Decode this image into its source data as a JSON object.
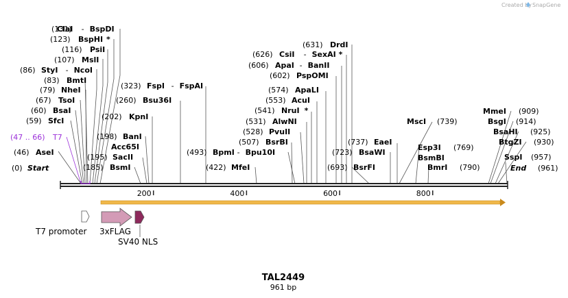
{
  "credit": {
    "text": "Created by",
    "brand": "SnapGene"
  },
  "sequence": {
    "name": "TAL2449",
    "length_label": "961 bp",
    "length_bp": 961
  },
  "scale": {
    "ticks": [
      {
        "label": "200",
        "bp": 200
      },
      {
        "label": "400",
        "bp": 400
      },
      {
        "label": "600",
        "bp": 600
      },
      {
        "label": "800",
        "bp": 800
      }
    ]
  },
  "orf": {
    "start_bp": 86,
    "end_bp": 961,
    "color": "#f0b84a"
  },
  "features": [
    {
      "label": "T7 promoter",
      "type": "promoter",
      "color": "#ffffff"
    },
    {
      "label": "3xFLAG",
      "type": "cds",
      "color": "#d39bb6"
    },
    {
      "label": "SV40 NLS",
      "type": "cds",
      "color": "#8e2a5c"
    }
  ],
  "left_labels": [
    {
      "pos": "(131)",
      "name": "ClaI",
      "suffix": "-",
      "name2": "BspDI",
      "star": ""
    },
    {
      "pos": "(123)",
      "name": "BspHI",
      "suffix": "",
      "name2": "",
      "star": "*"
    },
    {
      "pos": "(116)",
      "name": "PsiI",
      "suffix": "",
      "name2": "",
      "star": ""
    },
    {
      "pos": "(107)",
      "name": "MslI",
      "suffix": "",
      "name2": "",
      "star": ""
    },
    {
      "pos": "(86)",
      "name": "StyI",
      "suffix": "-",
      "name2": "NcoI",
      "star": ""
    },
    {
      "pos": "(83)",
      "name": "BmtI",
      "suffix": "",
      "name2": "",
      "star": ""
    },
    {
      "pos": "(79)",
      "name": "NheI",
      "suffix": "",
      "name2": "",
      "star": ""
    },
    {
      "pos": "(67)",
      "name": "TsoI",
      "suffix": "",
      "name2": "",
      "star": ""
    },
    {
      "pos": "(60)",
      "name": "BsaI",
      "suffix": "",
      "name2": "",
      "star": ""
    },
    {
      "pos": "(59)",
      "name": "SfcI",
      "suffix": "",
      "name2": "",
      "star": ""
    },
    {
      "pos": "(47 .. 66)",
      "name": "T7",
      "suffix": "",
      "name2": "",
      "star": ""
    },
    {
      "pos": "(46)",
      "name": "AseI",
      "suffix": "",
      "name2": "",
      "star": ""
    },
    {
      "pos": "(0)",
      "name": "Start",
      "suffix": "",
      "name2": "",
      "star": ""
    }
  ],
  "mid_labels": [
    {
      "pos": "(323)",
      "name": "FspI",
      "suffix": "-",
      "name2": "FspAI",
      "star": ""
    },
    {
      "pos": "(260)",
      "name": "Bsu36I",
      "suffix": "",
      "name2": "",
      "star": ""
    },
    {
      "pos": "(202)",
      "name": "KpnI",
      "suffix": "",
      "name2": "",
      "star": ""
    },
    {
      "pos": "(198)",
      "name": "BanI",
      "suffix": "",
      "name2": "",
      "star": ""
    },
    {
      "pos": "",
      "name": "Acc65I",
      "suffix": "",
      "name2": "",
      "star": ""
    },
    {
      "pos": "(195)",
      "name": "SacII",
      "suffix": "",
      "name2": "",
      "star": ""
    },
    {
      "pos": "(185)",
      "name": "BsmI",
      "suffix": "",
      "name2": "",
      "star": ""
    },
    {
      "pos": "(493)",
      "name": "BpmI",
      "suffix": "-",
      "name2": "Bpu10I",
      "star": ""
    },
    {
      "pos": "(422)",
      "name": "MfeI",
      "suffix": "",
      "name2": "",
      "star": ""
    }
  ],
  "center_labels": [
    {
      "pos": "(631)",
      "name": "DrdI",
      "suffix": "",
      "name2": "",
      "star": ""
    },
    {
      "pos": "(626)",
      "name": "CsiI",
      "suffix": "-",
      "name2": "SexAI",
      "star": "*"
    },
    {
      "pos": "(606)",
      "name": "ApaI",
      "suffix": "-",
      "name2": "BanII",
      "star": ""
    },
    {
      "pos": "(602)",
      "name": "PspOMI",
      "suffix": "",
      "name2": "",
      "star": ""
    },
    {
      "pos": "(574)",
      "name": "ApaLI",
      "suffix": "",
      "name2": "",
      "star": ""
    },
    {
      "pos": "(553)",
      "name": "AcuI",
      "suffix": "",
      "name2": "",
      "star": ""
    },
    {
      "pos": "(541)",
      "name": "NruI",
      "suffix": "",
      "name2": "",
      "star": "*"
    },
    {
      "pos": "(531)",
      "name": "AlwNI",
      "suffix": "",
      "name2": "",
      "star": ""
    },
    {
      "pos": "(528)",
      "name": "PvuII",
      "suffix": "",
      "name2": "",
      "star": ""
    },
    {
      "pos": "(507)",
      "name": "BsrBI",
      "suffix": "",
      "name2": "",
      "star": ""
    },
    {
      "pos": "(737)",
      "name": "EaeI",
      "suffix": "",
      "name2": "",
      "star": ""
    },
    {
      "pos": "(723)",
      "name": "BsaWI",
      "suffix": "",
      "name2": "",
      "star": ""
    },
    {
      "pos": "(693)",
      "name": "BsrFI",
      "suffix": "",
      "name2": "",
      "star": ""
    }
  ],
  "right_labels": [
    {
      "pos": "(739)",
      "name": "MscI",
      "suffix": "",
      "name2": "",
      "star": ""
    },
    {
      "pos": "(769)",
      "name": "Esp3I",
      "suffix": "",
      "name2": "",
      "star": ""
    },
    {
      "pos": "",
      "name": "BsmBI",
      "suffix": "",
      "name2": "",
      "star": ""
    },
    {
      "pos": "(790)",
      "name": "BmrI",
      "suffix": "",
      "name2": "",
      "star": ""
    },
    {
      "pos": "(909)",
      "name": "MmeI",
      "suffix": "",
      "name2": "",
      "star": ""
    },
    {
      "pos": "(914)",
      "name": "BsgI",
      "suffix": "",
      "name2": "",
      "star": ""
    },
    {
      "pos": "(925)",
      "name": "BsaHI",
      "suffix": "",
      "name2": "",
      "star": ""
    },
    {
      "pos": "(930)",
      "name": "BtgZI",
      "suffix": "",
      "name2": "",
      "star": ""
    },
    {
      "pos": "(957)",
      "name": "SspI",
      "suffix": "",
      "name2": "",
      "star": ""
    },
    {
      "pos": "(961)",
      "name": "End",
      "suffix": "",
      "name2": "",
      "star": ""
    }
  ]
}
